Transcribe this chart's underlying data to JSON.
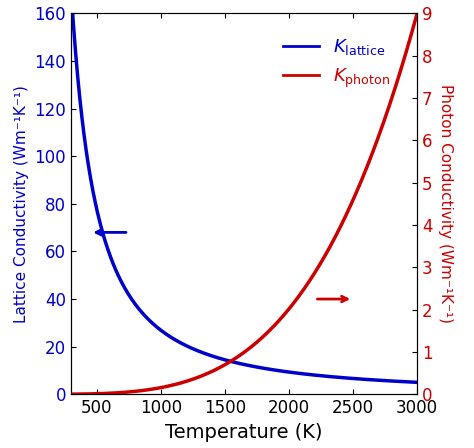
{
  "title": "",
  "xlabel": "Temperature (K)",
  "ylabel_left": "Lattice Conductivity (Wm⁻¹K⁻¹)",
  "ylabel_right": "Photon Conductivity (Wm⁻¹K⁻¹)",
  "x_min": 300,
  "x_max": 3000,
  "y_left_min": 0,
  "y_left_max": 160,
  "y_right_min": 0,
  "y_right_max": 9,
  "lattice_color": "#0000cc",
  "photon_color": "#cc0000",
  "lattice_n": -1.531,
  "photon_n": 3.69
}
